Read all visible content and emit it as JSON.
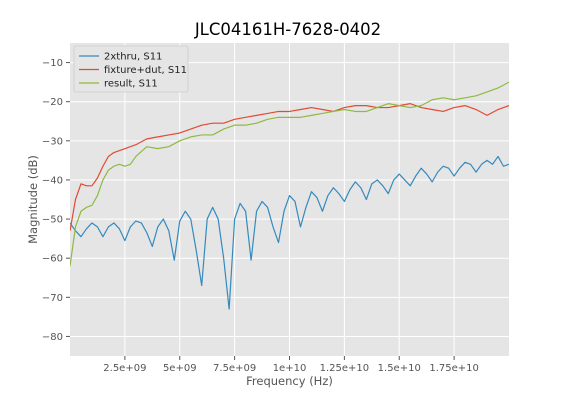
{
  "chart_data": {
    "type": "line",
    "title": "JLC04161H-7628-0402",
    "xlabel": "Frequency (Hz)",
    "ylabel": "Magnitude (dB)",
    "xlim": [
      0,
      20000000000
    ],
    "ylim": [
      -85,
      -5
    ],
    "xticks": [
      2500000000,
      5000000000,
      7500000000,
      10000000000,
      12500000000,
      15000000000,
      17500000000
    ],
    "xtick_labels": [
      "2.5e+09",
      "5e+09",
      "7.5e+09",
      "1e+10",
      "1.25e+10",
      "1.5e+10",
      "1.75e+10"
    ],
    "yticks": [
      -80,
      -70,
      -60,
      -50,
      -40,
      -30,
      -20,
      -10
    ],
    "ytick_labels": [
      "−80",
      "−70",
      "−60",
      "−50",
      "−40",
      "−30",
      "−20",
      "−10"
    ],
    "grid": true,
    "legend_position": "top-left",
    "series": [
      {
        "name": "2xthru, S11",
        "color": "#348abd",
        "x": [
          0,
          250000000,
          500000000,
          750000000,
          1000000000,
          1250000000,
          1500000000,
          1750000000,
          2000000000,
          2250000000,
          2500000000,
          2750000000,
          3000000000,
          3250000000,
          3500000000,
          3750000000,
          4000000000,
          4250000000,
          4500000000,
          4750000000,
          5000000000,
          5250000000,
          5500000000,
          5750000000,
          6000000000,
          6250000000,
          6500000000,
          6750000000,
          7000000000,
          7250000000,
          7500000000,
          7750000000,
          8000000000,
          8250000000,
          8500000000,
          8750000000,
          9000000000,
          9250000000,
          9500000000,
          9750000000,
          10000000000,
          10250000000,
          10500000000,
          10750000000,
          11000000000,
          11250000000,
          11500000000,
          11750000000,
          12000000000,
          12250000000,
          12500000000,
          12750000000,
          13000000000,
          13250000000,
          13500000000,
          13750000000,
          14000000000,
          14250000000,
          14500000000,
          14750000000,
          15000000000,
          15250000000,
          15500000000,
          15750000000,
          16000000000,
          16250000000,
          16500000000,
          16750000000,
          17000000000,
          17250000000,
          17500000000,
          17750000000,
          18000000000,
          18250000000,
          18500000000,
          18750000000,
          19000000000,
          19250000000,
          19500000000,
          19750000000,
          20000000000
        ],
        "values": [
          -51,
          -53,
          -54.5,
          -52.5,
          -51,
          -52,
          -54.5,
          -52,
          -51,
          -52.5,
          -55.5,
          -52,
          -50.5,
          -51,
          -53.5,
          -57,
          -52,
          -50,
          -53,
          -60.5,
          -50.5,
          -48,
          -50,
          -58,
          -67,
          -50,
          -47,
          -50,
          -60,
          -73,
          -50,
          -46,
          -48,
          -60.5,
          -48,
          -45.5,
          -47,
          -52,
          -56,
          -48,
          -44,
          -45.5,
          -52,
          -47,
          -43,
          -44.5,
          -48,
          -44,
          -42,
          -43.5,
          -45.5,
          -42.5,
          -40.5,
          -42,
          -45,
          -41,
          -40,
          -41.5,
          -43.5,
          -40,
          -38.5,
          -40,
          -41.5,
          -39,
          -37,
          -38.5,
          -40.5,
          -38,
          -36.5,
          -37,
          -39,
          -37,
          -35.5,
          -36,
          -38,
          -36,
          -35,
          -36,
          -34,
          -36.5,
          -36
        ]
      },
      {
        "name": "fixture+dut, S11",
        "color": "#e24a33",
        "x": [
          0,
          250000000,
          500000000,
          750000000,
          1000000000,
          1250000000,
          1500000000,
          1750000000,
          2000000000,
          2500000000,
          3000000000,
          3500000000,
          4000000000,
          4500000000,
          5000000000,
          5500000000,
          6000000000,
          6500000000,
          7000000000,
          7500000000,
          8000000000,
          8500000000,
          9000000000,
          9500000000,
          10000000000,
          10500000000,
          11000000000,
          11500000000,
          12000000000,
          12500000000,
          13000000000,
          13500000000,
          14000000000,
          14500000000,
          15000000000,
          15500000000,
          16000000000,
          16500000000,
          17000000000,
          17500000000,
          18000000000,
          18500000000,
          19000000000,
          19500000000,
          20000000000
        ],
        "values": [
          -53,
          -45,
          -41,
          -41.5,
          -41.5,
          -39.5,
          -36.5,
          -34,
          -33,
          -32,
          -31,
          -29.5,
          -29,
          -28.5,
          -28,
          -27,
          -26,
          -25.5,
          -25.5,
          -24.5,
          -24,
          -23.5,
          -23,
          -22.5,
          -22.5,
          -22,
          -21.5,
          -22,
          -22.5,
          -21.5,
          -21,
          -21,
          -21.5,
          -21.5,
          -21,
          -20.5,
          -21.5,
          -22,
          -22.5,
          -21.5,
          -21,
          -22,
          -23.5,
          -22,
          -21
        ]
      },
      {
        "name": "result, S11",
        "color": "#8eba42",
        "x": [
          0,
          250000000,
          500000000,
          750000000,
          1000000000,
          1250000000,
          1500000000,
          1750000000,
          2000000000,
          2250000000,
          2500000000,
          2750000000,
          3000000000,
          3500000000,
          4000000000,
          4500000000,
          5000000000,
          5500000000,
          6000000000,
          6500000000,
          7000000000,
          7500000000,
          8000000000,
          8500000000,
          9000000000,
          9500000000,
          10000000000,
          10500000000,
          11000000000,
          11500000000,
          12000000000,
          12500000000,
          13000000000,
          13500000000,
          14000000000,
          14500000000,
          15000000000,
          15500000000,
          16000000000,
          16500000000,
          17000000000,
          17500000000,
          18000000000,
          18500000000,
          19000000000,
          19500000000,
          20000000000
        ],
        "values": [
          -62,
          -52,
          -48,
          -47,
          -46.5,
          -44,
          -40,
          -37.5,
          -36.5,
          -36,
          -36.5,
          -36,
          -34,
          -31.5,
          -32,
          -31.5,
          -30,
          -29,
          -28.5,
          -28.5,
          -27,
          -26,
          -26,
          -25.5,
          -24.5,
          -24,
          -24,
          -24,
          -23.5,
          -23,
          -22.5,
          -22,
          -22.5,
          -22.5,
          -21.5,
          -20.5,
          -21,
          -21.5,
          -21,
          -19.5,
          -19,
          -19.5,
          -19,
          -18.5,
          -17.5,
          -16.5,
          -15
        ]
      }
    ]
  }
}
